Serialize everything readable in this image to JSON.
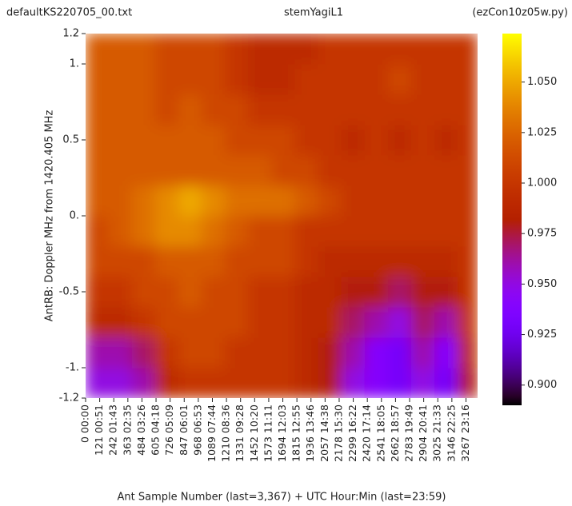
{
  "chart_data": {
    "type": "heatmap",
    "title_left": "defaultKS220705_00.txt",
    "title": "stemYagiL1",
    "title_right": "(ezCon10z05w.py)",
    "xlabel": "Ant Sample Number (last=3,367) + UTC Hour:Min (last=23:59)",
    "ylabel": "AntRB:  Doppler MHz from 1420.405 MHz",
    "xlim": [
      0,
      3367
    ],
    "ylim": [
      -1.2,
      1.2
    ],
    "xticks": [
      {
        "value": 0,
        "label": "0 00:00"
      },
      {
        "value": 121,
        "label": "121 00:51"
      },
      {
        "value": 242,
        "label": "242 01:43"
      },
      {
        "value": 363,
        "label": "363 02:35"
      },
      {
        "value": 484,
        "label": "484 03:26"
      },
      {
        "value": 605,
        "label": "605 04:18"
      },
      {
        "value": 726,
        "label": "726 05:09"
      },
      {
        "value": 847,
        "label": "847 06:01"
      },
      {
        "value": 968,
        "label": "968 06:53"
      },
      {
        "value": 1089,
        "label": "1089 07:44"
      },
      {
        "value": 1210,
        "label": "1210 08:36"
      },
      {
        "value": 1331,
        "label": "1331 09:28"
      },
      {
        "value": 1452,
        "label": "1452 10:20"
      },
      {
        "value": 1573,
        "label": "1573 11:11"
      },
      {
        "value": 1694,
        "label": "1694 12:03"
      },
      {
        "value": 1815,
        "label": "1815 12:55"
      },
      {
        "value": 1936,
        "label": "1936 13:46"
      },
      {
        "value": 2057,
        "label": "2057 14:38"
      },
      {
        "value": 2178,
        "label": "2178 15:30"
      },
      {
        "value": 2299,
        "label": "2299 16:22"
      },
      {
        "value": 2420,
        "label": "2420 17:14"
      },
      {
        "value": 2541,
        "label": "2541 18:05"
      },
      {
        "value": 2662,
        "label": "2662 18:57"
      },
      {
        "value": 2783,
        "label": "2783 19:49"
      },
      {
        "value": 2904,
        "label": "2904 20:41"
      },
      {
        "value": 3025,
        "label": "3025 21:33"
      },
      {
        "value": 3146,
        "label": "3146 22:25"
      },
      {
        "value": 3267,
        "label": "3267 23:16"
      }
    ],
    "yticks": [
      1.2,
      {
        "value": 1,
        "label": "1."
      },
      0.5,
      {
        "value": 0,
        "label": "0."
      },
      -0.5,
      {
        "value": -1,
        "label": "-1."
      },
      -1.2
    ],
    "xbins": [
      0,
      200,
      400,
      600,
      800,
      1000,
      1200,
      1400,
      1600,
      1800,
      2000,
      2200,
      2400,
      2600,
      2800,
      3000,
      3200,
      3367
    ],
    "ybins": [
      -1.2,
      -1.0,
      -0.8,
      -0.6,
      -0.4,
      -0.2,
      0,
      0.2,
      0.4,
      0.6,
      0.8,
      1.0,
      1.2
    ],
    "values": [
      [
        0.95,
        0.95,
        0.96,
        0.99,
        1.0,
        1.0,
        1.0,
        1.0,
        1.0,
        0.99,
        0.98,
        0.95,
        0.94,
        0.93,
        0.95,
        0.93,
        0.98
      ],
      [
        0.96,
        0.96,
        0.97,
        1.0,
        1.01,
        1.01,
        1.0,
        1.0,
        1.0,
        0.99,
        0.98,
        0.96,
        0.94,
        0.93,
        0.96,
        0.94,
        0.99
      ],
      [
        0.99,
        0.99,
        1.0,
        1.01,
        1.01,
        1.01,
        1.01,
        1.0,
        1.0,
        0.99,
        0.99,
        0.97,
        0.96,
        0.95,
        0.97,
        0.96,
        1.0
      ],
      [
        1.0,
        1.0,
        1.01,
        1.01,
        1.02,
        1.01,
        1.01,
        1.0,
        1.0,
        0.99,
        0.99,
        0.98,
        0.98,
        0.97,
        0.98,
        0.98,
        1.0
      ],
      [
        1.01,
        1.01,
        1.01,
        1.02,
        1.02,
        1.02,
        1.01,
        1.01,
        1.01,
        1.0,
        0.99,
        0.99,
        0.99,
        0.99,
        0.99,
        0.99,
        1.0
      ],
      [
        1.01,
        1.02,
        1.03,
        1.04,
        1.04,
        1.03,
        1.02,
        1.01,
        1.01,
        1.0,
        1.0,
        1.0,
        1.0,
        1.0,
        1.0,
        1.0,
        1.0
      ],
      [
        1.02,
        1.02,
        1.03,
        1.04,
        1.05,
        1.04,
        1.03,
        1.03,
        1.03,
        1.02,
        1.01,
        1.0,
        1.0,
        1.0,
        1.0,
        1.0,
        1.0
      ],
      [
        1.02,
        1.02,
        1.02,
        1.02,
        1.02,
        1.02,
        1.02,
        1.02,
        1.01,
        1.01,
        1.0,
        1.0,
        1.0,
        1.0,
        1.0,
        1.0,
        1.0
      ],
      [
        1.02,
        1.02,
        1.02,
        1.02,
        1.02,
        1.02,
        1.01,
        1.01,
        1.01,
        1.0,
        1.0,
        0.99,
        1.0,
        0.99,
        1.0,
        0.99,
        1.0
      ],
      [
        1.02,
        1.02,
        1.02,
        1.01,
        1.02,
        1.01,
        1.01,
        1.0,
        1.0,
        1.0,
        1.0,
        1.0,
        1.0,
        1.0,
        1.0,
        1.0,
        1.0
      ],
      [
        1.02,
        1.02,
        1.02,
        1.01,
        1.01,
        1.01,
        1.0,
        0.99,
        0.99,
        1.0,
        1.0,
        1.0,
        1.0,
        1.01,
        1.0,
        1.0,
        1.0
      ],
      [
        1.02,
        1.02,
        1.02,
        1.01,
        1.01,
        1.01,
        1.0,
        0.99,
        0.99,
        0.99,
        1.0,
        1.0,
        1.0,
        1.0,
        1.0,
        1.0,
        1.0
      ]
    ],
    "colormap": "gnuplot",
    "clim": [
      0.89,
      1.074
    ],
    "cticks": [
      {
        "value": 0.9,
        "label": "0.900"
      },
      {
        "value": 0.925,
        "label": "0.925"
      },
      {
        "value": 0.95,
        "label": "0.950"
      },
      {
        "value": 0.975,
        "label": "0.975"
      },
      {
        "value": 1.0,
        "label": "1.000"
      },
      {
        "value": 1.025,
        "label": "1.025"
      },
      {
        "value": 1.05,
        "label": "1.050"
      }
    ]
  }
}
